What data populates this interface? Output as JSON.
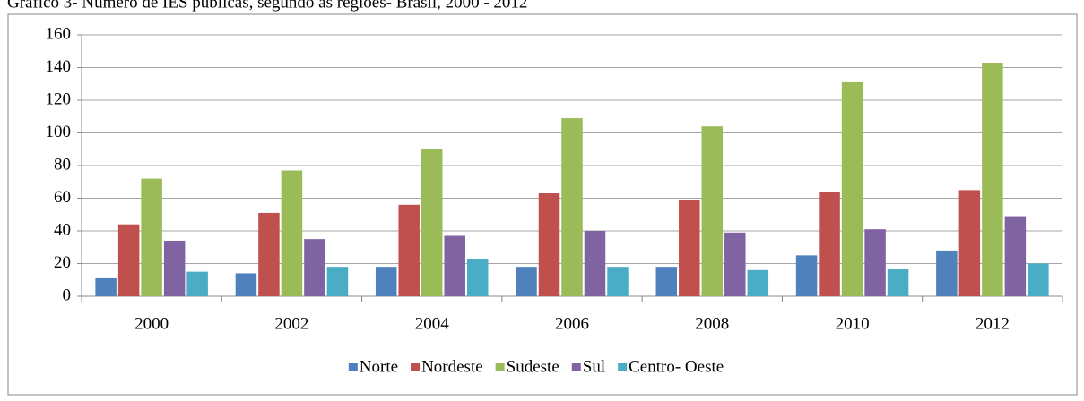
{
  "chart_data": {
    "type": "bar",
    "title": "Gráfico 3- Número de IES públicas, segundo as regiões- Brasil, 2000 - 2012",
    "categories": [
      "2000",
      "2002",
      "2004",
      "2006",
      "2008",
      "2010",
      "2012"
    ],
    "series": [
      {
        "name": "Norte",
        "color": "#4f81bd",
        "values": [
          11,
          14,
          18,
          18,
          18,
          25,
          28
        ]
      },
      {
        "name": "Nordeste",
        "color": "#c0504d",
        "values": [
          44,
          51,
          56,
          63,
          59,
          64,
          65
        ]
      },
      {
        "name": "Sudeste",
        "color": "#9bbb59",
        "values": [
          72,
          77,
          90,
          109,
          104,
          131,
          143
        ]
      },
      {
        "name": "Sul",
        "color": "#8064a2",
        "values": [
          34,
          35,
          37,
          40,
          39,
          41,
          49
        ]
      },
      {
        "name": "Centro- Oeste",
        "color": "#4bacc6",
        "values": [
          15,
          18,
          23,
          18,
          16,
          17,
          20
        ]
      }
    ],
    "ylim": [
      0,
      160
    ],
    "yticks": [
      0,
      20,
      40,
      60,
      80,
      100,
      120,
      140,
      160
    ],
    "grid": true,
    "legend": "bottom"
  }
}
